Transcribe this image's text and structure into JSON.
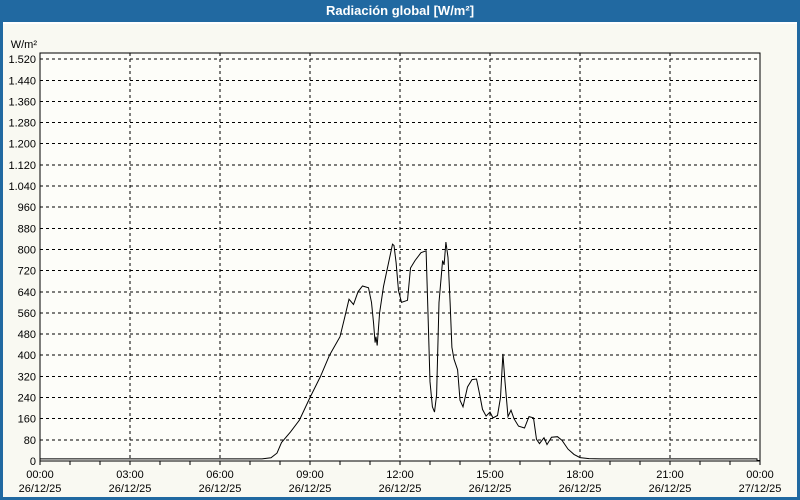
{
  "title": "Radiación global [W/m²]",
  "colors": {
    "titlebar_bg": "#2169A1",
    "titlebar_text": "#FFFFFF",
    "frame": "#2169A1",
    "content_bg": "#F9F9F2",
    "plot_bg": "#FDFDF9",
    "grid": "#000000",
    "axis": "#000000",
    "tick_text": "#000000",
    "line": "#000000"
  },
  "chart_data": {
    "type": "line",
    "title": "Radiación global [W/m²]",
    "unit_label": "W/m²",
    "grid": "dashed",
    "legend": "none",
    "ylim": [
      0,
      1540
    ],
    "x_axis": {
      "start": "00:00 26/12/25",
      "end": "00:00 27/12/25",
      "major_tick_hours": 3,
      "minor_tick_hours": 1
    },
    "y_ticks": [
      {
        "v": 0,
        "label": "0"
      },
      {
        "v": 80,
        "label": "80"
      },
      {
        "v": 160,
        "label": "160"
      },
      {
        "v": 240,
        "label": "240"
      },
      {
        "v": 320,
        "label": "320"
      },
      {
        "v": 400,
        "label": "400"
      },
      {
        "v": 480,
        "label": "480"
      },
      {
        "v": 560,
        "label": "560"
      },
      {
        "v": 640,
        "label": "640"
      },
      {
        "v": 720,
        "label": "720"
      },
      {
        "v": 800,
        "label": "800"
      },
      {
        "v": 880,
        "label": "880"
      },
      {
        "v": 960,
        "label": "960"
      },
      {
        "v": 1040,
        "label": "1.040"
      },
      {
        "v": 1120,
        "label": "1.120"
      },
      {
        "v": 1200,
        "label": "1.200"
      },
      {
        "v": 1280,
        "label": "1.280"
      },
      {
        "v": 1360,
        "label": "1.360"
      },
      {
        "v": 1440,
        "label": "1.440"
      },
      {
        "v": 1520,
        "label": "1.520"
      }
    ],
    "x_ticks": [
      {
        "hour": 0,
        "time": "00:00",
        "date": "26/12/25"
      },
      {
        "hour": 3,
        "time": "03:00",
        "date": "26/12/25"
      },
      {
        "hour": 6,
        "time": "06:00",
        "date": "26/12/25"
      },
      {
        "hour": 9,
        "time": "09:00",
        "date": "26/12/25"
      },
      {
        "hour": 12,
        "time": "12:00",
        "date": "26/12/25"
      },
      {
        "hour": 15,
        "time": "15:00",
        "date": "26/12/25"
      },
      {
        "hour": 18,
        "time": "18:00",
        "date": "26/12/25"
      },
      {
        "hour": 21,
        "time": "21:00",
        "date": "26/12/25"
      },
      {
        "hour": 24,
        "time": "00:00",
        "date": "27/12/25"
      }
    ],
    "series": [
      {
        "name": "Radiación global",
        "color": "#000000",
        "points": [
          [
            0,
            8
          ],
          [
            7.4,
            8
          ],
          [
            7.7,
            12
          ],
          [
            7.9,
            30
          ],
          [
            8.05,
            70
          ],
          [
            8.35,
            110
          ],
          [
            8.65,
            155
          ],
          [
            9,
            240
          ],
          [
            9.35,
            320
          ],
          [
            9.65,
            400
          ],
          [
            10,
            470
          ],
          [
            10.15,
            540
          ],
          [
            10.3,
            612
          ],
          [
            10.45,
            592
          ],
          [
            10.6,
            640
          ],
          [
            10.75,
            662
          ],
          [
            10.95,
            655
          ],
          [
            11.05,
            600
          ],
          [
            11.12,
            520
          ],
          [
            11.17,
            448
          ],
          [
            11.2,
            470
          ],
          [
            11.24,
            437
          ],
          [
            11.32,
            560
          ],
          [
            11.45,
            660
          ],
          [
            11.6,
            740
          ],
          [
            11.75,
            820
          ],
          [
            11.8,
            815
          ],
          [
            11.87,
            750
          ],
          [
            11.95,
            645
          ],
          [
            12.05,
            600
          ],
          [
            12.25,
            608
          ],
          [
            12.35,
            730
          ],
          [
            12.5,
            758
          ],
          [
            12.7,
            788
          ],
          [
            12.87,
            795
          ],
          [
            12.93,
            570
          ],
          [
            13,
            300
          ],
          [
            13.08,
            205
          ],
          [
            13.15,
            185
          ],
          [
            13.22,
            250
          ],
          [
            13.3,
            600
          ],
          [
            13.42,
            758
          ],
          [
            13.47,
            742
          ],
          [
            13.53,
            828
          ],
          [
            13.6,
            770
          ],
          [
            13.67,
            600
          ],
          [
            13.73,
            430
          ],
          [
            13.8,
            385
          ],
          [
            13.92,
            345
          ],
          [
            14,
            230
          ],
          [
            14.1,
            205
          ],
          [
            14.25,
            280
          ],
          [
            14.4,
            308
          ],
          [
            14.55,
            310
          ],
          [
            14.65,
            255
          ],
          [
            14.75,
            195
          ],
          [
            14.87,
            170
          ],
          [
            15,
            185
          ],
          [
            15.1,
            163
          ],
          [
            15.25,
            172
          ],
          [
            15.35,
            240
          ],
          [
            15.43,
            405
          ],
          [
            15.5,
            300
          ],
          [
            15.6,
            168
          ],
          [
            15.7,
            192
          ],
          [
            15.8,
            160
          ],
          [
            15.95,
            132
          ],
          [
            16.15,
            125
          ],
          [
            16.3,
            168
          ],
          [
            16.45,
            163
          ],
          [
            16.55,
            82
          ],
          [
            16.65,
            66
          ],
          [
            16.8,
            88
          ],
          [
            16.9,
            62
          ],
          [
            17.05,
            90
          ],
          [
            17.25,
            92
          ],
          [
            17.4,
            78
          ],
          [
            17.6,
            45
          ],
          [
            17.8,
            25
          ],
          [
            18,
            13
          ],
          [
            18.3,
            9
          ],
          [
            18.7,
            8
          ],
          [
            23.9,
            8
          ],
          [
            23.9,
            2
          ],
          [
            24,
            2
          ]
        ]
      }
    ]
  }
}
